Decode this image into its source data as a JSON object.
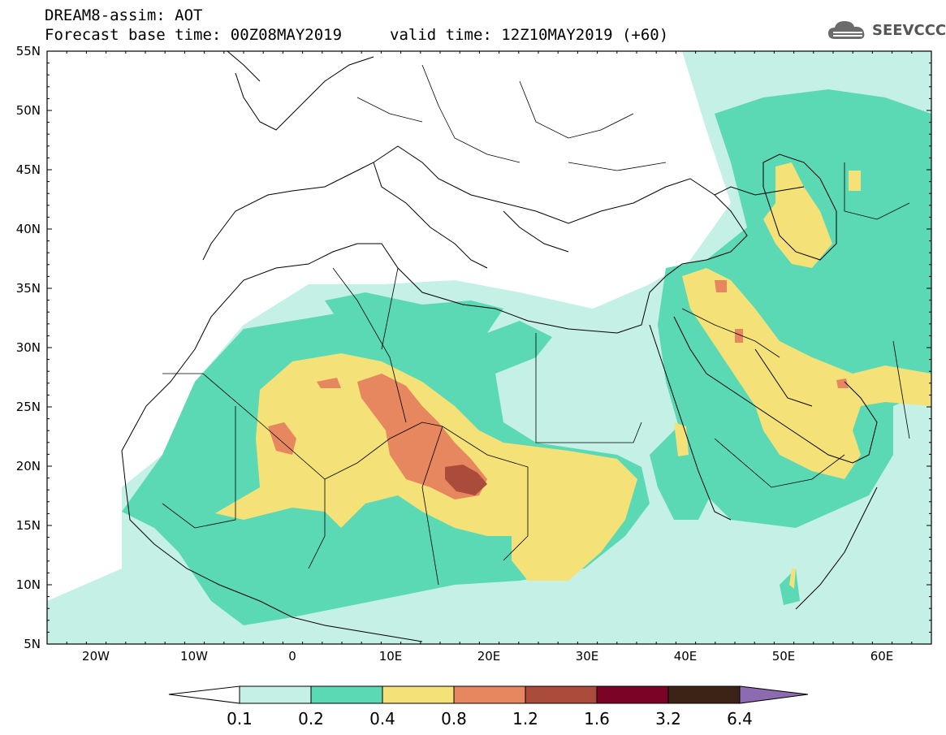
{
  "header": {
    "line1": "DREAM8-assim: AOT",
    "line2": "Forecast base time: 00Z08MAY2019",
    "valid": "valid time: 12Z10MAY2019 (+60)"
  },
  "logo": {
    "text": "SEEVCCC",
    "icon": "cloud-icon"
  },
  "map": {
    "region": "North Africa, Mediterranean, Middle East",
    "lon_ticks": [
      "20W",
      "10W",
      "0",
      "10E",
      "20E",
      "30E",
      "40E",
      "50E",
      "60E"
    ],
    "lat_ticks": [
      "55N",
      "50N",
      "45N",
      "40N",
      "35N",
      "30N",
      "25N",
      "20N",
      "15N",
      "10N",
      "5N"
    ],
    "lon_range": [
      -25,
      65
    ],
    "lat_range": [
      5,
      55
    ]
  },
  "colorbar": {
    "labels": [
      "0.1",
      "0.2",
      "0.4",
      "0.8",
      "1.2",
      "1.6",
      "3.2",
      "6.4"
    ],
    "colors": [
      "#ffffff",
      "#c4f0e6",
      "#5ad9b4",
      "#f4e178",
      "#e6875f",
      "#ab4b3c",
      "#7a0326",
      "#3b2316",
      "#8c6bb0"
    ]
  }
}
